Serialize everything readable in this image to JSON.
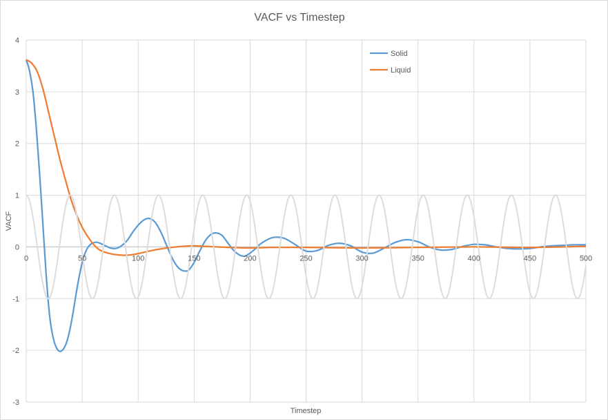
{
  "chart_data": {
    "type": "line",
    "title": "VACF vs Timestep",
    "xlabel": "Timestep",
    "ylabel": "VACF",
    "xlim": [
      0,
      500
    ],
    "ylim": [
      -3,
      4
    ],
    "x_ticks": [
      0,
      50,
      100,
      150,
      200,
      250,
      300,
      350,
      400,
      450,
      500
    ],
    "y_ticks": [
      -3,
      -2,
      -1,
      0,
      1,
      2,
      3,
      4
    ],
    "x_tick_labels": [
      "0",
      "50",
      "100",
      "150",
      "200",
      "250",
      "300",
      "350",
      "400",
      "450",
      "500"
    ],
    "y_tick_labels": [
      "-3",
      "-2",
      "-1",
      "0",
      "1",
      "2",
      "3",
      "4"
    ],
    "grid": true,
    "legend_position": "top-right",
    "series": [
      {
        "name": "Solid",
        "color": "#5b9bd5",
        "x": [
          0,
          3,
          6,
          9,
          12,
          15,
          18,
          21,
          24,
          27,
          30,
          33,
          36,
          39,
          42,
          45,
          48,
          51,
          54,
          57,
          60,
          63,
          66,
          70,
          75,
          80,
          85,
          90,
          95,
          100,
          105,
          110,
          115,
          120,
          125,
          130,
          135,
          140,
          145,
          150,
          155,
          160,
          165,
          170,
          175,
          180,
          185,
          190,
          195,
          200,
          205,
          210,
          220,
          230,
          240,
          250,
          260,
          270,
          280,
          290,
          300,
          310,
          320,
          330,
          340,
          350,
          360,
          370,
          380,
          390,
          400,
          410,
          420,
          430,
          440,
          450,
          460,
          470,
          480,
          490,
          500
        ],
        "values": [
          3.62,
          3.4,
          3.0,
          2.3,
          1.4,
          0.4,
          -0.6,
          -1.35,
          -1.75,
          -1.95,
          -2.02,
          -1.98,
          -1.85,
          -1.6,
          -1.25,
          -0.85,
          -0.5,
          -0.22,
          -0.05,
          0.04,
          0.08,
          0.09,
          0.07,
          0.03,
          -0.02,
          -0.03,
          0.02,
          0.12,
          0.28,
          0.42,
          0.52,
          0.55,
          0.48,
          0.3,
          0.05,
          -0.2,
          -0.38,
          -0.46,
          -0.45,
          -0.3,
          -0.08,
          0.12,
          0.24,
          0.27,
          0.22,
          0.08,
          -0.06,
          -0.15,
          -0.18,
          -0.12,
          -0.03,
          0.07,
          0.18,
          0.17,
          0.05,
          -0.08,
          -0.07,
          0.03,
          0.07,
          0.02,
          -0.1,
          -0.12,
          -0.02,
          0.09,
          0.14,
          0.1,
          0.0,
          -0.06,
          -0.05,
          0.01,
          0.05,
          0.04,
          0.0,
          -0.03,
          -0.04,
          -0.03,
          0.0,
          0.02,
          0.03,
          0.04,
          0.04
        ]
      },
      {
        "name": "Liquid",
        "color": "#ed7d31",
        "x": [
          0,
          5,
          10,
          15,
          20,
          25,
          30,
          35,
          40,
          45,
          50,
          55,
          60,
          65,
          70,
          75,
          80,
          85,
          90,
          95,
          100,
          110,
          120,
          130,
          140,
          150,
          160,
          170,
          180,
          200,
          220,
          250,
          300,
          350,
          400,
          450,
          500
        ],
        "values": [
          3.62,
          3.55,
          3.38,
          3.05,
          2.6,
          2.15,
          1.7,
          1.3,
          0.92,
          0.62,
          0.38,
          0.2,
          0.05,
          -0.05,
          -0.1,
          -0.13,
          -0.15,
          -0.16,
          -0.16,
          -0.15,
          -0.13,
          -0.08,
          -0.04,
          -0.01,
          0.01,
          0.02,
          0.01,
          0.0,
          -0.01,
          -0.02,
          -0.01,
          -0.01,
          -0.02,
          -0.01,
          0.0,
          -0.01,
          0.01
        ]
      },
      {
        "name": "",
        "color": "#dcdcdc",
        "x": [],
        "values": [],
        "function": "cos",
        "amplitude": 1,
        "period": 39.4,
        "phase_peak_x": 0,
        "x_range": [
          0,
          500
        ]
      }
    ]
  }
}
